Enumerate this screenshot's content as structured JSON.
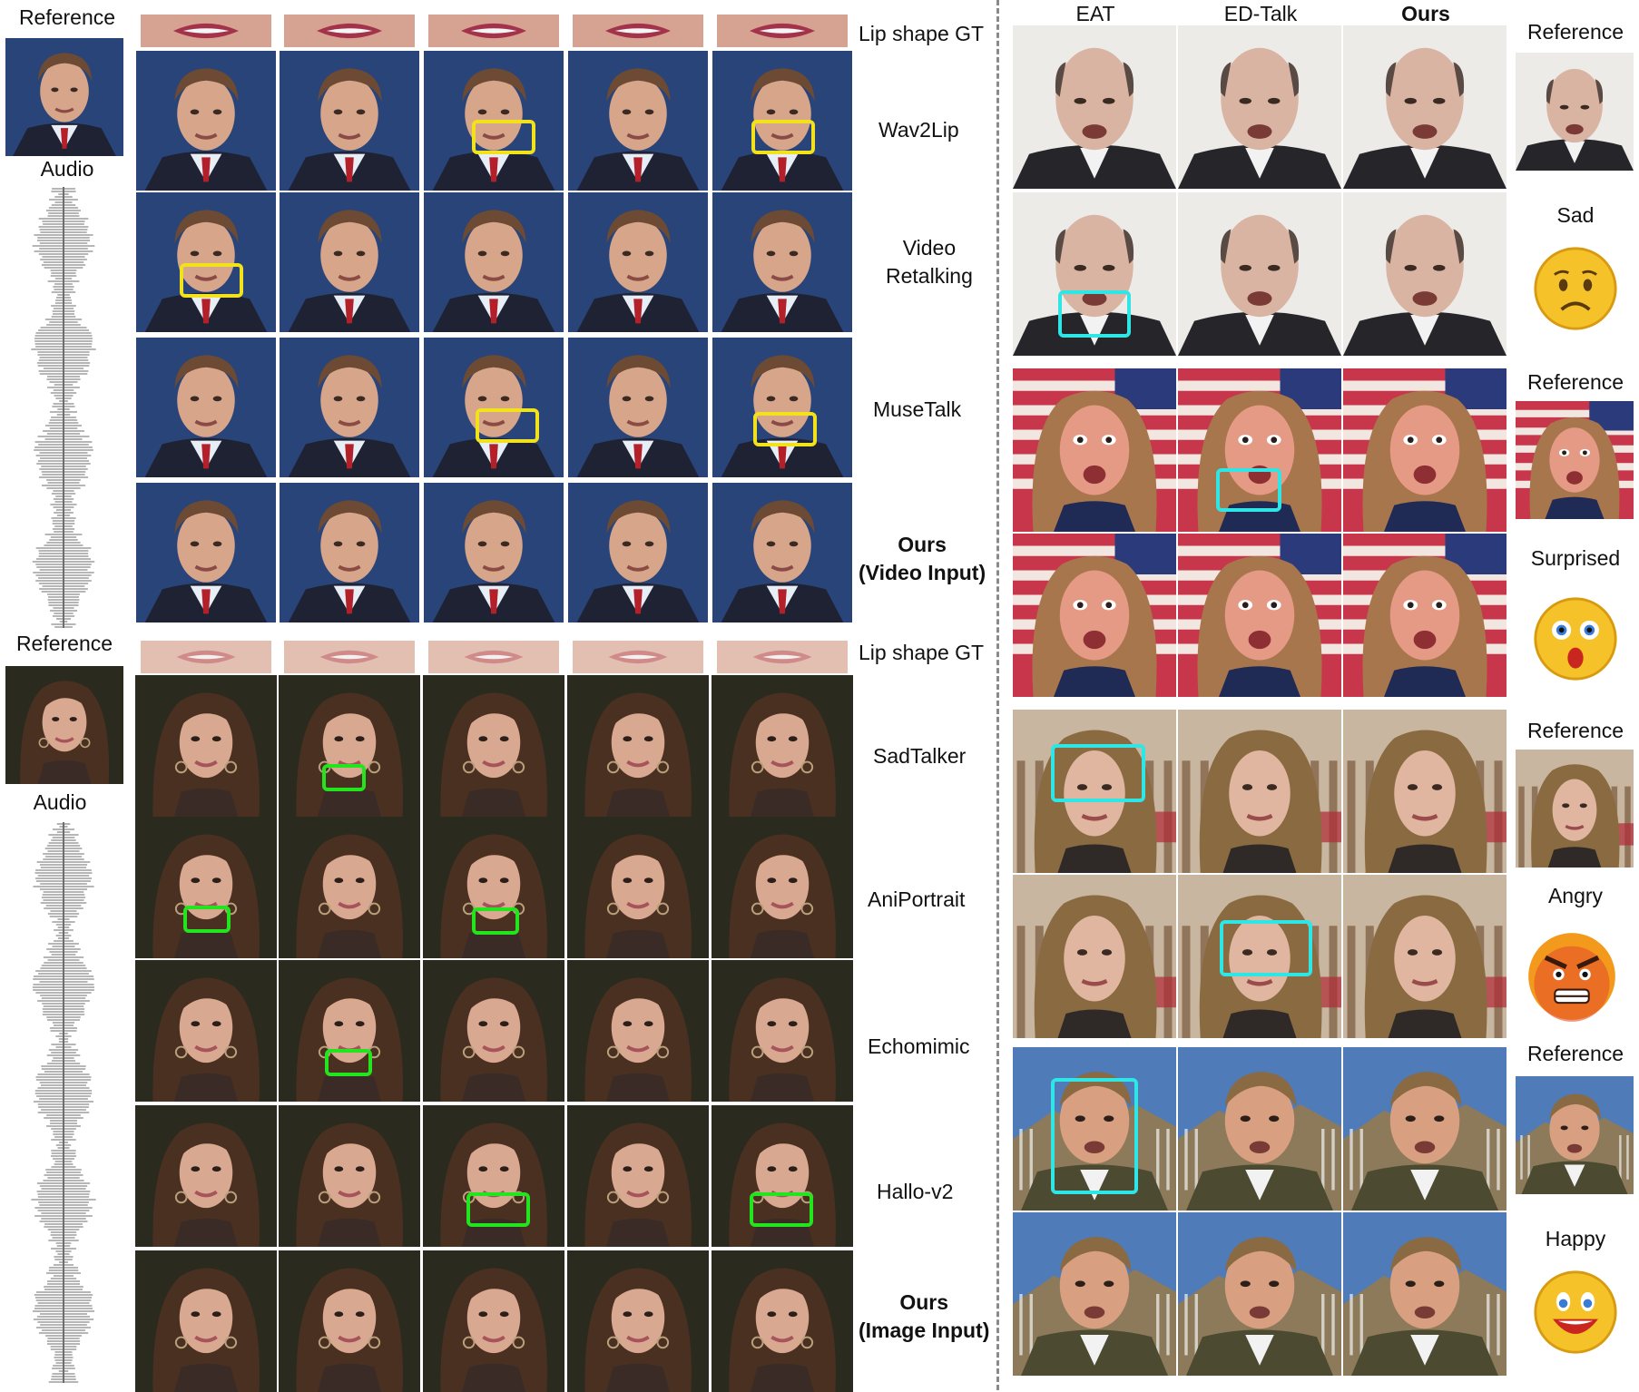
{
  "left_top": {
    "reference_label": "Reference",
    "audio_label": "Audio",
    "row_labels": [
      "Lip shape GT",
      "Wav2Lip",
      "Video\nRetalking",
      "MuseTalk",
      "Ours\n(Video Input)"
    ]
  },
  "left_bottom": {
    "reference_label": "Reference",
    "audio_label": "Audio",
    "row_labels": [
      "Lip shape GT",
      "SadTalker",
      "AniPortrait",
      "Echomimic",
      "Hallo-v2",
      "Ours\n(Image Input)"
    ]
  },
  "right": {
    "column_headers": [
      "EAT",
      "ED-Talk",
      "Ours"
    ],
    "groups": [
      {
        "reference_label": "Reference",
        "emotion": "Sad"
      },
      {
        "reference_label": "Reference",
        "emotion": "Surprised"
      },
      {
        "reference_label": "Reference",
        "emotion": "Angry"
      },
      {
        "reference_label": "Reference",
        "emotion": "Happy"
      }
    ]
  },
  "colors": {
    "highlight_yellow": "#f2e21c",
    "highlight_green": "#22e51e",
    "highlight_cyan": "#2ee6e6",
    "divider": "#8a8a8a"
  }
}
